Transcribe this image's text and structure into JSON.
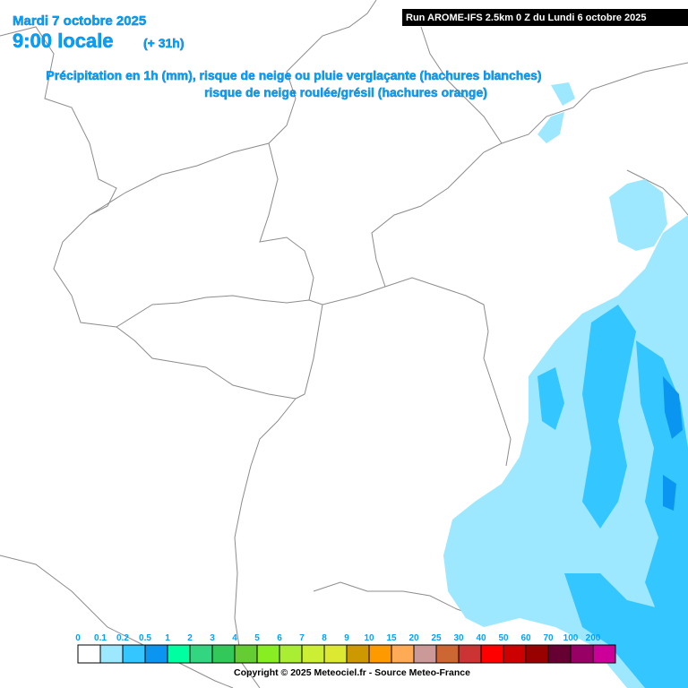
{
  "header": {
    "date": "Mardi 7 octobre 2025",
    "time": "9:00 locale",
    "lead": "(+ 31h)",
    "subtitle_1": "Précipitation en 1h (mm), risque de neige ou pluie verglaçante (hachures blanches)",
    "subtitle_2": "risque de neige roulée/grésil (hachures orange)",
    "run": "Run AROME-IFS 2.5km 0 Z du Lundi 6 octobre 2025"
  },
  "legend": {
    "ticks": [
      0,
      0.1,
      0.2,
      0.5,
      1,
      2,
      3,
      4,
      5,
      6,
      7,
      8,
      9,
      10,
      15,
      20,
      25,
      30,
      40,
      50,
      60,
      70,
      100,
      200
    ],
    "colors": [
      "#ffffff",
      "#9ee8ff",
      "#33c6ff",
      "#0a96f0",
      "#00ffa0",
      "#33d680",
      "#33c85a",
      "#66cc33",
      "#88ee22",
      "#aaee33",
      "#ccee33",
      "#dde833",
      "#cc9900",
      "#ff9900",
      "#ffaa55",
      "#cc9999",
      "#cc6633",
      "#cc3333",
      "#ff0000",
      "#cc0000",
      "#990000",
      "#660033",
      "#990066",
      "#cc0099"
    ]
  },
  "footer": {
    "copyright": "Copyright © 2025 Meteociel.fr - Source Meteo-France"
  }
}
